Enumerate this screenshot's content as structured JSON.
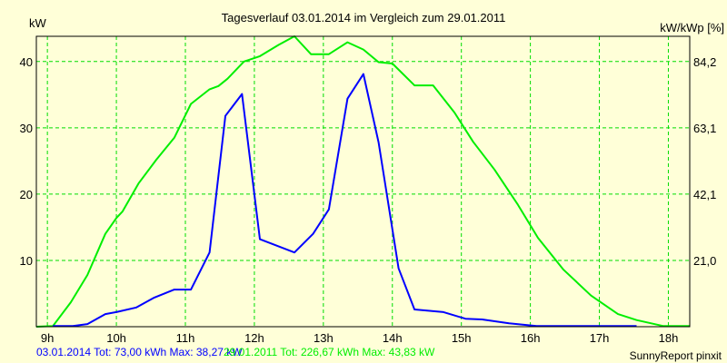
{
  "chart_data": {
    "type": "line",
    "title": "Tagesverlauf 03.01.2014 im Vergleich zum 29.01.2011",
    "ylabel": "kW",
    "ylabel_right": "kW/kWp [%]",
    "xlim": [
      8.84,
      18.31
    ],
    "ylim": [
      0,
      43.8
    ],
    "grid": true,
    "x_ticks": [
      {
        "value": 9,
        "label": "9h"
      },
      {
        "value": 10,
        "label": "10h"
      },
      {
        "value": 11,
        "label": "11h"
      },
      {
        "value": 12,
        "label": "12h"
      },
      {
        "value": 13,
        "label": "13h"
      },
      {
        "value": 14,
        "label": "14h"
      },
      {
        "value": 15,
        "label": "15h"
      },
      {
        "value": 16,
        "label": "16h"
      },
      {
        "value": 17,
        "label": "17h"
      },
      {
        "value": 18,
        "label": "18h"
      }
    ],
    "y_ticks": [
      {
        "value": 10,
        "label": "10"
      },
      {
        "value": 20,
        "label": "20"
      },
      {
        "value": 30,
        "label": "30"
      },
      {
        "value": 40,
        "label": "40"
      }
    ],
    "y_ticks_right": [
      {
        "value": 10,
        "label": "21,0"
      },
      {
        "value": 20,
        "label": "42,1"
      },
      {
        "value": 30,
        "label": "63,1"
      },
      {
        "value": 40,
        "label": "84,2"
      }
    ],
    "series": [
      {
        "name": "03.01.2014",
        "color": "#0000ff",
        "legend": "03.01.2014 Tot: 73,00 kWh Max: 38,27 kW",
        "points": [
          [
            9.08,
            0.1
          ],
          [
            9.37,
            0.1
          ],
          [
            9.58,
            0.4
          ],
          [
            9.84,
            1.9
          ],
          [
            10.0,
            2.2
          ],
          [
            10.29,
            2.9
          ],
          [
            10.55,
            4.4
          ],
          [
            10.84,
            5.6
          ],
          [
            11.08,
            5.6
          ],
          [
            11.35,
            11.2
          ],
          [
            11.58,
            31.8
          ],
          [
            11.82,
            35.1
          ],
          [
            12.08,
            13.2
          ],
          [
            12.58,
            11.2
          ],
          [
            12.85,
            14.0
          ],
          [
            13.08,
            17.7
          ],
          [
            13.35,
            34.4
          ],
          [
            13.58,
            38.1
          ],
          [
            13.8,
            27.8
          ],
          [
            14.09,
            8.8
          ],
          [
            14.32,
            2.6
          ],
          [
            14.74,
            2.2
          ],
          [
            15.06,
            1.2
          ],
          [
            15.3,
            1.1
          ],
          [
            15.69,
            0.5
          ],
          [
            16.09,
            0.1
          ],
          [
            17.54,
            0.1
          ]
        ]
      },
      {
        "name": "29.01.2011",
        "color": "#00ee00",
        "legend": "29.01.2011 Tot: 226,67 kWh Max: 43,83 kW",
        "points": [
          [
            8.84,
            0
          ],
          [
            9.08,
            0.1
          ],
          [
            9.34,
            3.7
          ],
          [
            9.58,
            7.8
          ],
          [
            9.84,
            14.0
          ],
          [
            10.0,
            16.4
          ],
          [
            10.09,
            17.4
          ],
          [
            10.32,
            21.6
          ],
          [
            10.58,
            25.2
          ],
          [
            10.84,
            28.5
          ],
          [
            11.08,
            33.6
          ],
          [
            11.35,
            35.8
          ],
          [
            11.48,
            36.3
          ],
          [
            11.61,
            37.4
          ],
          [
            11.85,
            40.0
          ],
          [
            12.08,
            40.8
          ],
          [
            12.35,
            42.5
          ],
          [
            12.58,
            43.8
          ],
          [
            12.82,
            41.1
          ],
          [
            13.08,
            41.1
          ],
          [
            13.35,
            42.9
          ],
          [
            13.58,
            41.8
          ],
          [
            13.8,
            39.9
          ],
          [
            14.0,
            39.7
          ],
          [
            14.32,
            36.4
          ],
          [
            14.59,
            36.4
          ],
          [
            14.9,
            32.3
          ],
          [
            15.17,
            27.9
          ],
          [
            15.48,
            23.7
          ],
          [
            15.82,
            18.4
          ],
          [
            16.11,
            13.4
          ],
          [
            16.48,
            8.6
          ],
          [
            16.88,
            4.7
          ],
          [
            17.27,
            1.9
          ],
          [
            17.54,
            1.0
          ],
          [
            17.93,
            0.1
          ],
          [
            18.31,
            0.1
          ]
        ]
      }
    ],
    "credit": "SunnyReport pinxit"
  }
}
